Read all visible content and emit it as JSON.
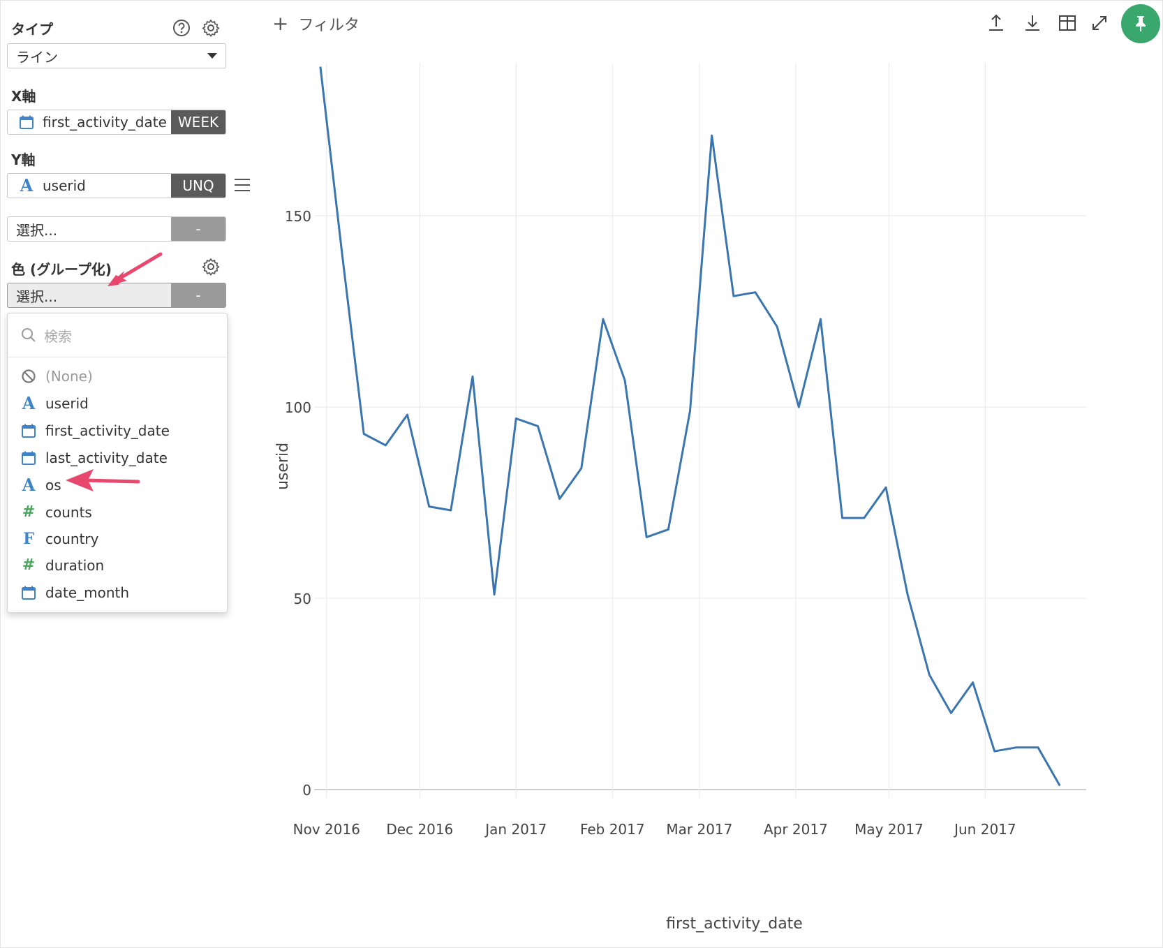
{
  "sidebar": {
    "type_label": "タイプ",
    "type_value": "ライン",
    "x_axis_label": "X軸",
    "x_field": {
      "name": "first_activity_date",
      "icon": "calendar-icon",
      "agg": "WEEK"
    },
    "y_axis_label": "Y軸",
    "y_field": {
      "name": "userid",
      "icon": "text-type-icon",
      "agg": "UNQ"
    },
    "y2_placeholder": "選択...",
    "y2_agg": "-",
    "color_label": "色 (グループ化)",
    "color_placeholder": "選択...",
    "color_agg": "-"
  },
  "dropdown": {
    "search_placeholder": "検索",
    "options": [
      {
        "label": "(None)",
        "icon": "no-icon"
      },
      {
        "label": "userid",
        "icon": "text-type-icon"
      },
      {
        "label": "first_activity_date",
        "icon": "calendar-icon"
      },
      {
        "label": "last_activity_date",
        "icon": "calendar-icon"
      },
      {
        "label": "os",
        "icon": "text-type-icon"
      },
      {
        "label": "counts",
        "icon": "hash-icon"
      },
      {
        "label": "country",
        "icon": "factor-icon"
      },
      {
        "label": "duration",
        "icon": "hash-icon"
      },
      {
        "label": "date_month",
        "icon": "calendar-icon"
      }
    ]
  },
  "toolbar": {
    "add_filter_label": "フィルタ",
    "icons": [
      "upload-icon",
      "download-icon",
      "table-icon",
      "expand-icon",
      "pin-icon"
    ]
  },
  "colors": {
    "line": "#3a75b0",
    "accent_arrow": "#e8476e",
    "pin_green": "#3aa76d"
  },
  "chart_data": {
    "type": "line",
    "xlabel": "first_activity_date",
    "ylabel": "userid",
    "ylim": [
      0,
      190
    ],
    "yticks": [
      0,
      50,
      100,
      150
    ],
    "xlim": [
      "2016-10-28",
      "2017-06-29"
    ],
    "xticks": [
      {
        "date": "2016-11-01",
        "label": "Nov 2016"
      },
      {
        "date": "2016-12-01",
        "label": "Dec 2016"
      },
      {
        "date": "2017-01-01",
        "label": "Jan 2017"
      },
      {
        "date": "2017-02-01",
        "label": "Feb 2017"
      },
      {
        "date": "2017-03-01",
        "label": "Mar 2017"
      },
      {
        "date": "2017-04-01",
        "label": "Apr 2017"
      },
      {
        "date": "2017-05-01",
        "label": "May 2017"
      },
      {
        "date": "2017-06-01",
        "label": "Jun 2017"
      }
    ],
    "grid": true,
    "series": [
      {
        "x": [
          "2016-10-30",
          "2016-11-06",
          "2016-11-13",
          "2016-11-20",
          "2016-11-27",
          "2016-12-04",
          "2016-12-11",
          "2016-12-18",
          "2016-12-25",
          "2017-01-01",
          "2017-01-08",
          "2017-01-15",
          "2017-01-22",
          "2017-01-29",
          "2017-02-05",
          "2017-02-12",
          "2017-02-19",
          "2017-02-26",
          "2017-03-05",
          "2017-03-12",
          "2017-03-19",
          "2017-03-26",
          "2017-04-02",
          "2017-04-09",
          "2017-04-16",
          "2017-04-23",
          "2017-04-30",
          "2017-05-07",
          "2017-05-14",
          "2017-05-21",
          "2017-05-28",
          "2017-06-04",
          "2017-06-11",
          "2017-06-18",
          "2017-06-25"
        ],
        "y": [
          189,
          140,
          93,
          90,
          98,
          74,
          73,
          108,
          51,
          97,
          95,
          76,
          84,
          123,
          107,
          66,
          68,
          99,
          171,
          129,
          130,
          121,
          100,
          123,
          71,
          71,
          79,
          51,
          30,
          20,
          28,
          10,
          11,
          11,
          1
        ]
      }
    ]
  }
}
